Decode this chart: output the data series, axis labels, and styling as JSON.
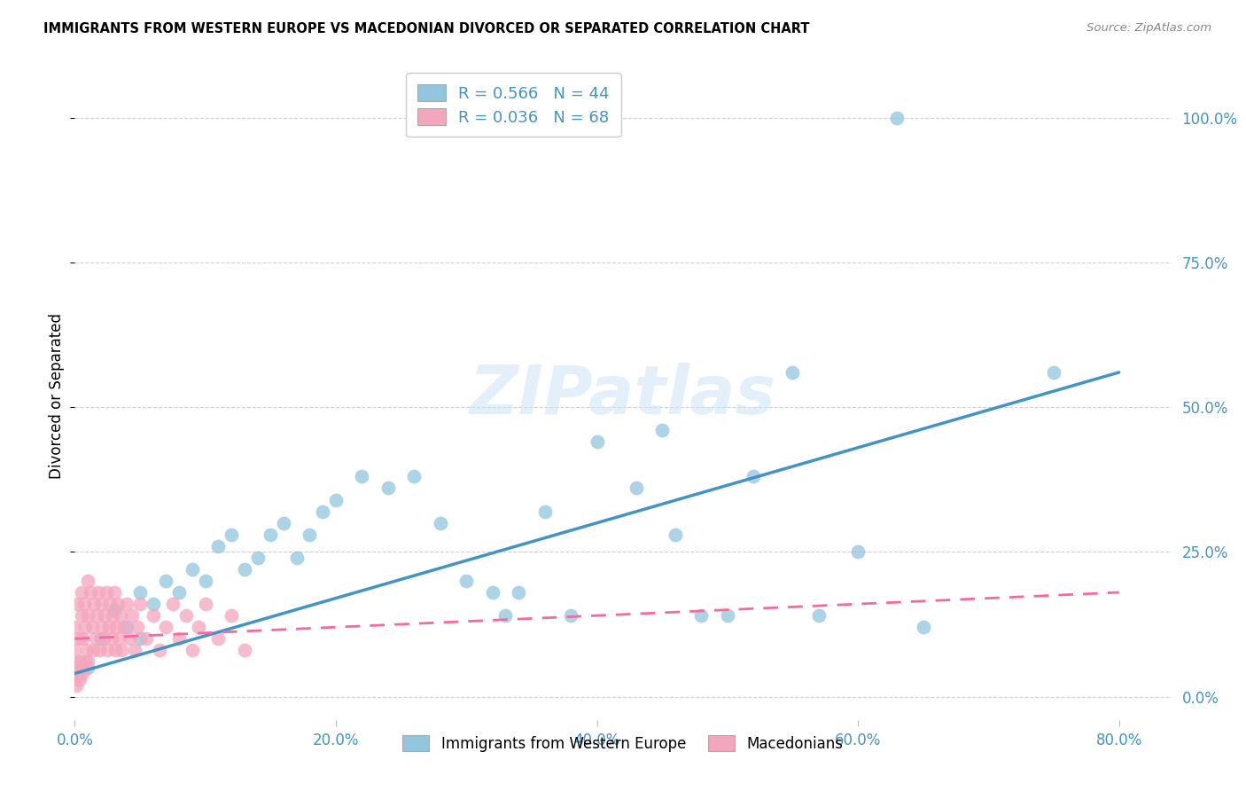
{
  "title": "IMMIGRANTS FROM WESTERN EUROPE VS MACEDONIAN DIVORCED OR SEPARATED CORRELATION CHART",
  "source": "Source: ZipAtlas.com",
  "watermark": "ZIPatlas",
  "legend1_label": "R = 0.566   N = 44",
  "legend2_label": "R = 0.036   N = 68",
  "legend_label1": "Immigrants from Western Europe",
  "legend_label2": "Macedonians",
  "blue_color": "#92c5de",
  "pink_color": "#f4a6bd",
  "blue_line_color": "#4393c3",
  "pink_line_color": "#f768a1",
  "blue_scatter_x": [
    0.01,
    0.02,
    0.03,
    0.04,
    0.05,
    0.05,
    0.06,
    0.07,
    0.08,
    0.09,
    0.1,
    0.11,
    0.12,
    0.13,
    0.14,
    0.15,
    0.16,
    0.17,
    0.18,
    0.19,
    0.2,
    0.22,
    0.24,
    0.26,
    0.28,
    0.3,
    0.32,
    0.33,
    0.34,
    0.36,
    0.38,
    0.4,
    0.43,
    0.45,
    0.46,
    0.48,
    0.5,
    0.52,
    0.55,
    0.57,
    0.6,
    0.63,
    0.65,
    0.75
  ],
  "blue_scatter_y": [
    0.05,
    0.1,
    0.15,
    0.12,
    0.18,
    0.1,
    0.16,
    0.2,
    0.18,
    0.22,
    0.2,
    0.26,
    0.28,
    0.22,
    0.24,
    0.28,
    0.3,
    0.24,
    0.28,
    0.32,
    0.34,
    0.38,
    0.36,
    0.38,
    0.3,
    0.2,
    0.18,
    0.14,
    0.18,
    0.32,
    0.14,
    0.44,
    0.36,
    0.46,
    0.28,
    0.14,
    0.14,
    0.38,
    0.56,
    0.14,
    0.25,
    1.0,
    0.12,
    0.56
  ],
  "pink_scatter_x": [
    0.0,
    0.0,
    0.0,
    0.002,
    0.003,
    0.004,
    0.005,
    0.005,
    0.006,
    0.007,
    0.008,
    0.009,
    0.01,
    0.01,
    0.01,
    0.012,
    0.013,
    0.014,
    0.015,
    0.016,
    0.017,
    0.018,
    0.019,
    0.02,
    0.021,
    0.022,
    0.023,
    0.024,
    0.025,
    0.026,
    0.027,
    0.028,
    0.029,
    0.03,
    0.031,
    0.032,
    0.033,
    0.034,
    0.035,
    0.036,
    0.038,
    0.04,
    0.042,
    0.044,
    0.046,
    0.048,
    0.05,
    0.055,
    0.06,
    0.065,
    0.07,
    0.075,
    0.08,
    0.085,
    0.09,
    0.095,
    0.1,
    0.11,
    0.12,
    0.13,
    0.0,
    0.001,
    0.002,
    0.003,
    0.004,
    0.005,
    0.006,
    0.008
  ],
  "pink_scatter_y": [
    0.05,
    0.08,
    0.12,
    0.16,
    0.1,
    0.06,
    0.18,
    0.14,
    0.1,
    0.16,
    0.12,
    0.08,
    0.14,
    0.2,
    0.06,
    0.18,
    0.12,
    0.08,
    0.16,
    0.1,
    0.14,
    0.18,
    0.08,
    0.16,
    0.12,
    0.1,
    0.14,
    0.18,
    0.08,
    0.12,
    0.16,
    0.1,
    0.14,
    0.18,
    0.08,
    0.12,
    0.16,
    0.1,
    0.14,
    0.08,
    0.12,
    0.16,
    0.1,
    0.14,
    0.08,
    0.12,
    0.16,
    0.1,
    0.14,
    0.08,
    0.12,
    0.16,
    0.1,
    0.14,
    0.08,
    0.12,
    0.16,
    0.1,
    0.14,
    0.08,
    0.03,
    0.02,
    0.04,
    0.06,
    0.03,
    0.05,
    0.04,
    0.06
  ],
  "blue_line_x": [
    0.0,
    0.8
  ],
  "blue_line_y": [
    0.04,
    0.56
  ],
  "pink_line_x": [
    0.0,
    0.8
  ],
  "pink_line_y": [
    0.1,
    0.18
  ],
  "xlim": [
    0.0,
    0.84
  ],
  "ylim": [
    -0.04,
    1.08
  ],
  "xtick_vals": [
    0.0,
    0.2,
    0.4,
    0.6,
    0.8
  ],
  "ytick_vals": [
    0.0,
    0.25,
    0.5,
    0.75,
    1.0
  ]
}
